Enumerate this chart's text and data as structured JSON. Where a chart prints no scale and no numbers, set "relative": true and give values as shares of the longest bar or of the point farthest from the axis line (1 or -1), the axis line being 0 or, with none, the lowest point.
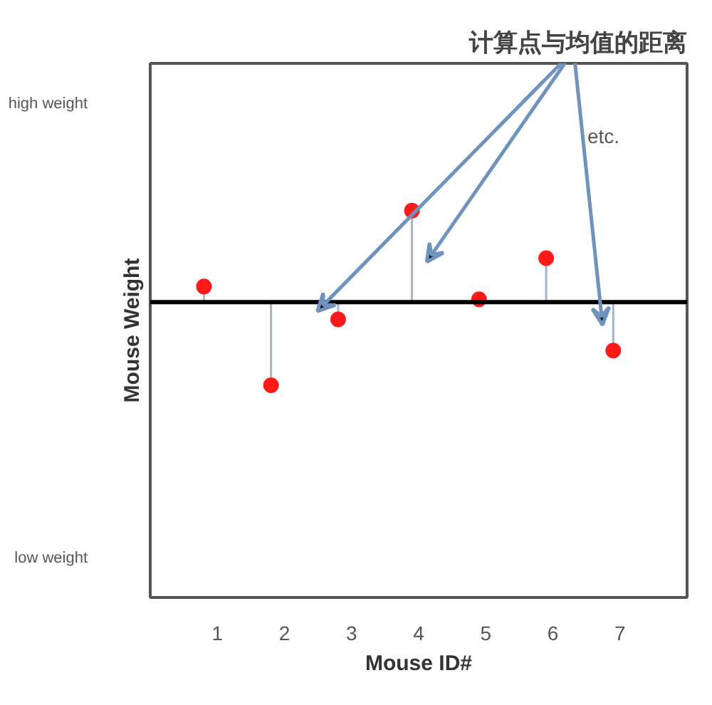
{
  "chart_data": {
    "type": "lollipop",
    "title": "计算点与均值的距离",
    "xlabel": "Mouse ID#",
    "ylabel": "Mouse Weight",
    "x": [
      0.8,
      1.8,
      2.8,
      3.9,
      4.9,
      5.9,
      6.9
    ],
    "series": [
      {
        "color": "#ff1a1a",
        "values": [
          0.17,
          -0.91,
          -0.19,
          1,
          0.03,
          0.48,
          -0.53
        ]
      }
    ],
    "relative": true,
    "xlim": [
      0,
      8
    ],
    "xticks": [
      1,
      2,
      3,
      4,
      5,
      6,
      7
    ],
    "annotations": [
      "high weight",
      "low weight",
      "etc."
    ],
    "marker": "circle",
    "grid": false
  }
}
